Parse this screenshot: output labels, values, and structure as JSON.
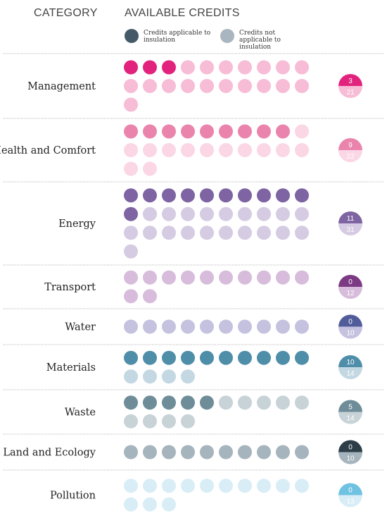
{
  "header": {
    "category": "CATEGORY",
    "credits": "AVAILABLE CREDITS"
  },
  "legend": [
    {
      "label": "Credits applicable to insulation",
      "color": "#455a68"
    },
    {
      "label": "Credits not applicable to insulation",
      "color": "#a9b6bf"
    }
  ],
  "chart_data": {
    "type": "table",
    "categories": [
      {
        "name": "Management",
        "applicable": 3,
        "total": 21,
        "colors": [
          "#e2237d",
          "#f7bcd6"
        ]
      },
      {
        "name": "Health and Comfort",
        "applicable": 9,
        "total": 22,
        "colors": [
          "#ea84ad",
          "#fbd6e5"
        ]
      },
      {
        "name": "Energy",
        "applicable": 11,
        "total": 31,
        "colors": [
          "#7e64a2",
          "#d5cbe3"
        ]
      },
      {
        "name": "Transport",
        "applicable": 0,
        "total": 12,
        "colors": [
          "#7d3a84",
          "#d7bcdb"
        ]
      },
      {
        "name": "Water",
        "applicable": 0,
        "total": 10,
        "colors": [
          "#515d9a",
          "#c5c2e0"
        ]
      },
      {
        "name": "Materials",
        "applicable": 10,
        "total": 14,
        "colors": [
          "#4f8ea9",
          "#c3d8e2"
        ]
      },
      {
        "name": "Waste",
        "applicable": 5,
        "total": 14,
        "colors": [
          "#6e8d99",
          "#c8d3d7"
        ]
      },
      {
        "name": "Land and Ecology",
        "applicable": 0,
        "total": 10,
        "colors": [
          "#2d3e48",
          "#a6b4bd"
        ]
      },
      {
        "name": "Pollution",
        "applicable": 0,
        "total": 13,
        "colors": [
          "#6fc2e2",
          "#d8edf6"
        ]
      }
    ]
  }
}
